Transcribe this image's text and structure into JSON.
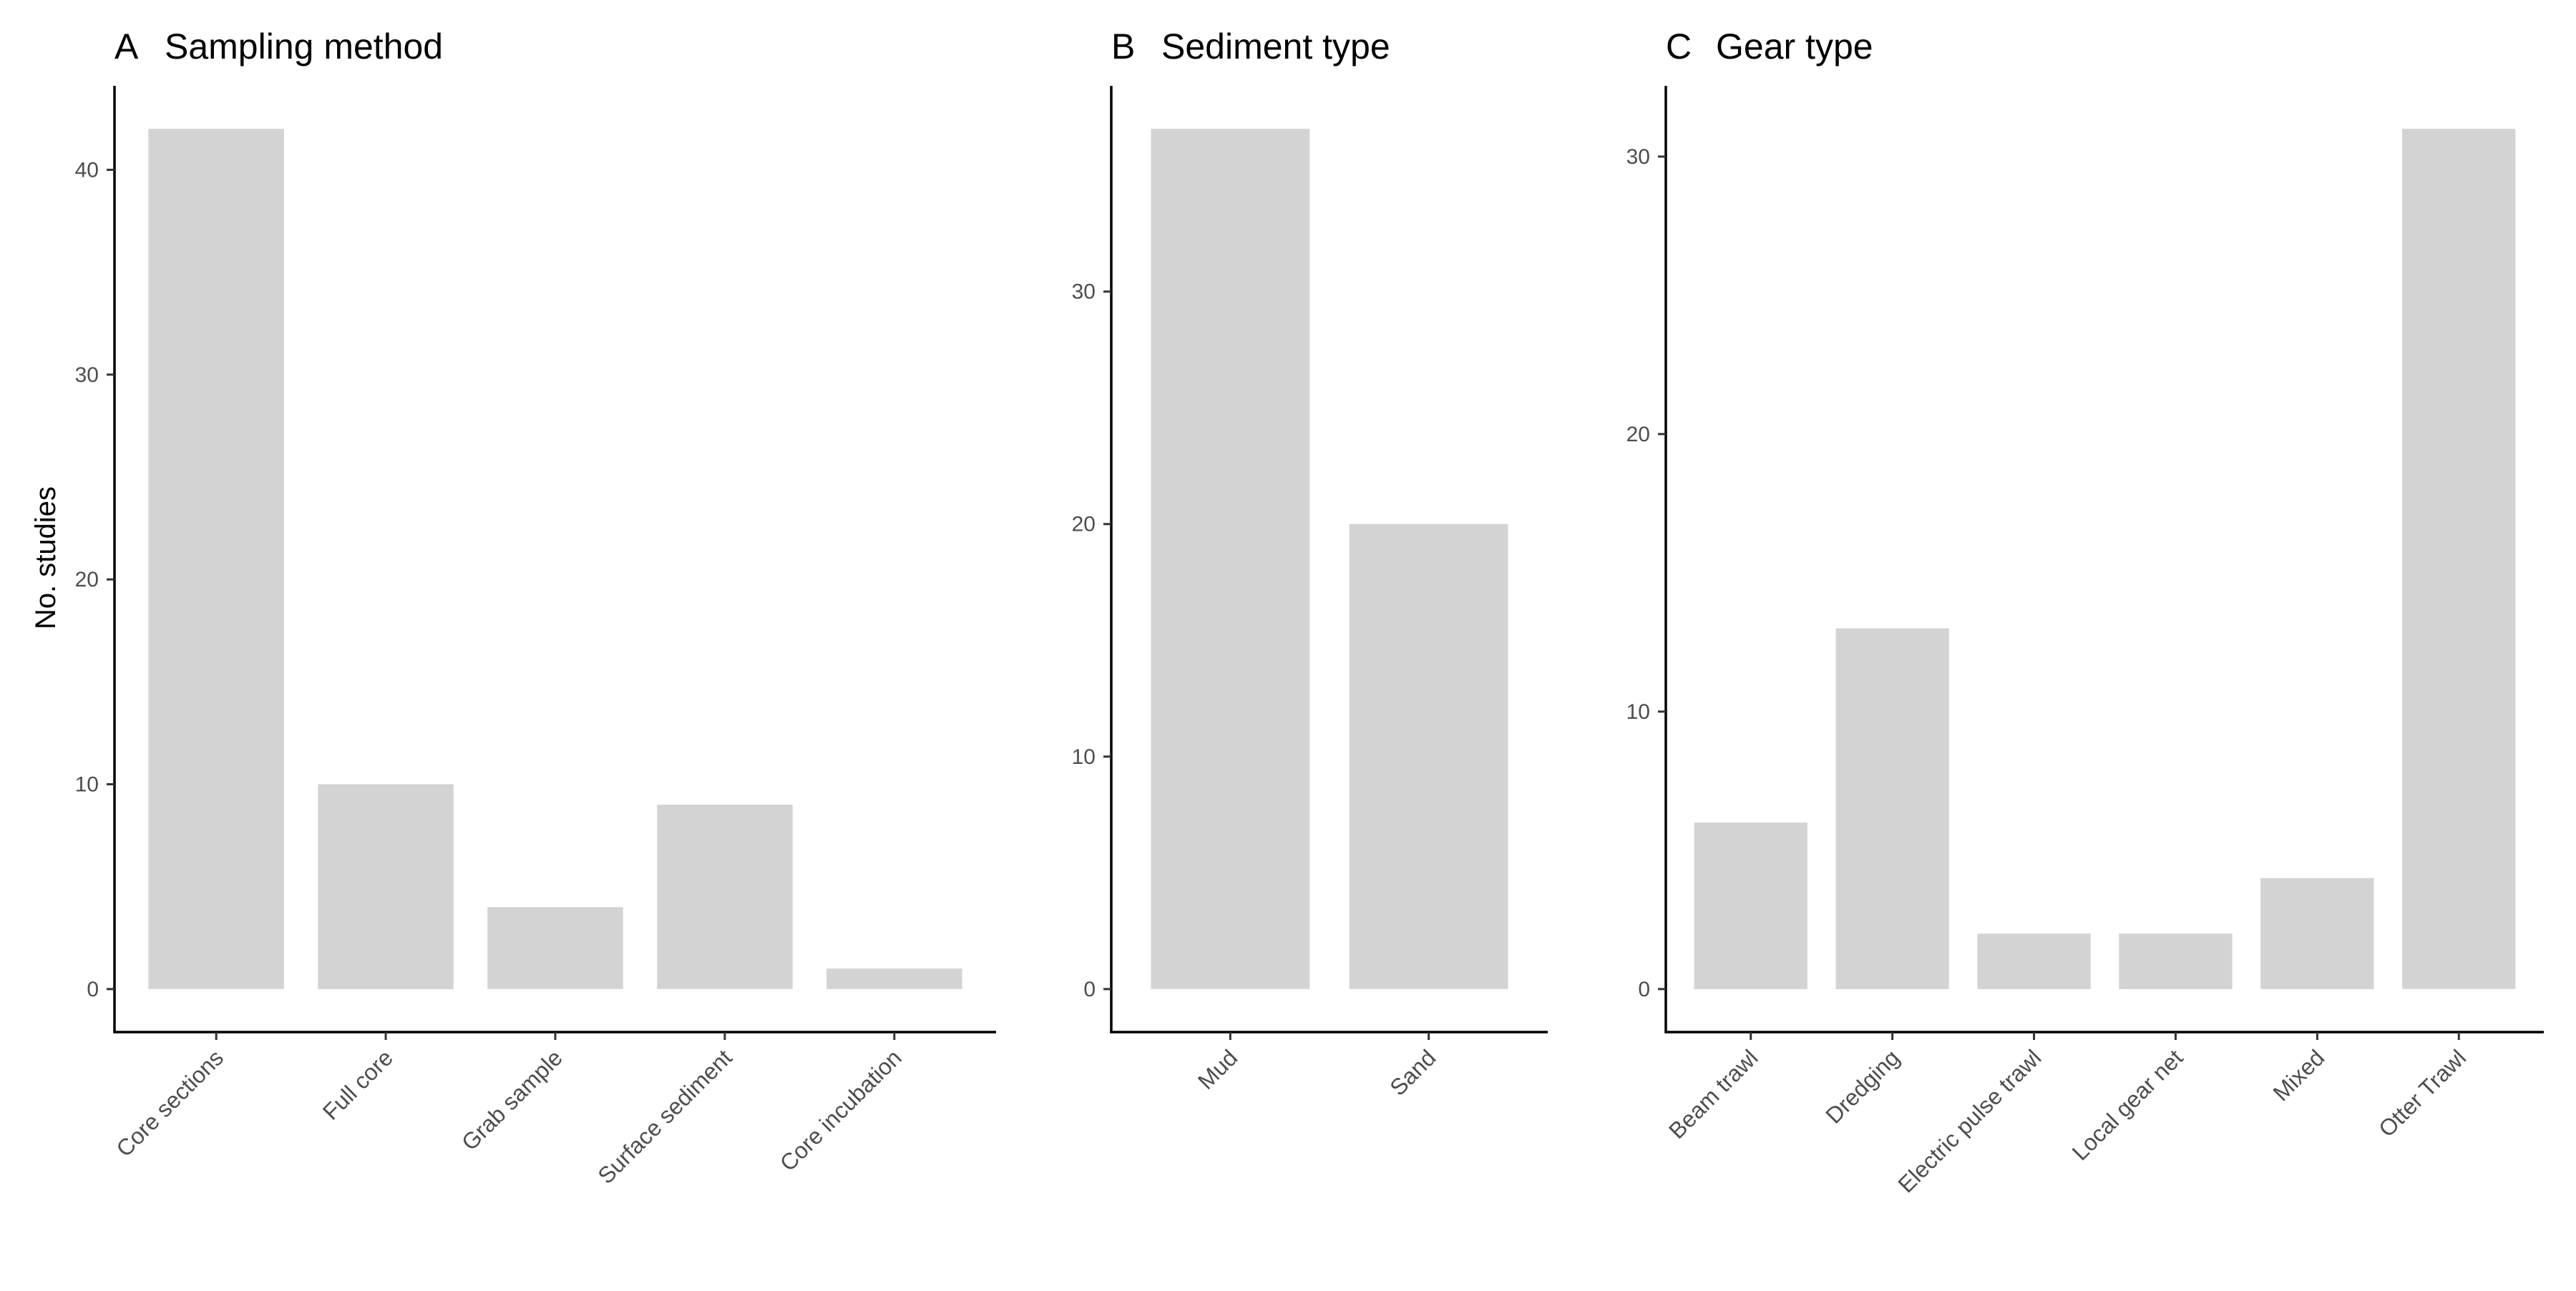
{
  "colors": {
    "bar": "#d3d3d3",
    "axis": "#000000",
    "tick_text": "#4d4d4d"
  },
  "y_axis_title": "No. studies",
  "chart_data": [
    {
      "type": "bar",
      "panel": "A",
      "title": "Sampling method",
      "xlabel": "",
      "ylabel": "No. studies",
      "categories": [
        "Core sections",
        "Full core",
        "Grab sample",
        "Surface sediment",
        "Core incubation"
      ],
      "values": [
        42,
        10,
        4,
        9,
        1
      ],
      "yticks": [
        0,
        10,
        20,
        30,
        40
      ],
      "ylim": [
        -2.1,
        44.1
      ],
      "grid": false
    },
    {
      "type": "bar",
      "panel": "B",
      "title": "Sediment type",
      "xlabel": "",
      "ylabel": "",
      "categories": [
        "Mud",
        "Sand"
      ],
      "values": [
        37,
        20
      ],
      "yticks": [
        0,
        10,
        20,
        30
      ],
      "ylim": [
        -1.85,
        38.85
      ],
      "grid": false
    },
    {
      "type": "bar",
      "panel": "C",
      "title": "Gear type",
      "xlabel": "",
      "ylabel": "",
      "categories": [
        "Beam trawl",
        "Dredging",
        "Electric pulse trawl",
        "Local gear net",
        "Mixed",
        "Otter Trawl"
      ],
      "values": [
        6,
        13,
        2,
        2,
        4,
        31
      ],
      "yticks": [
        0,
        10,
        20,
        30
      ],
      "ylim": [
        -1.55,
        32.55
      ],
      "grid": false
    }
  ]
}
